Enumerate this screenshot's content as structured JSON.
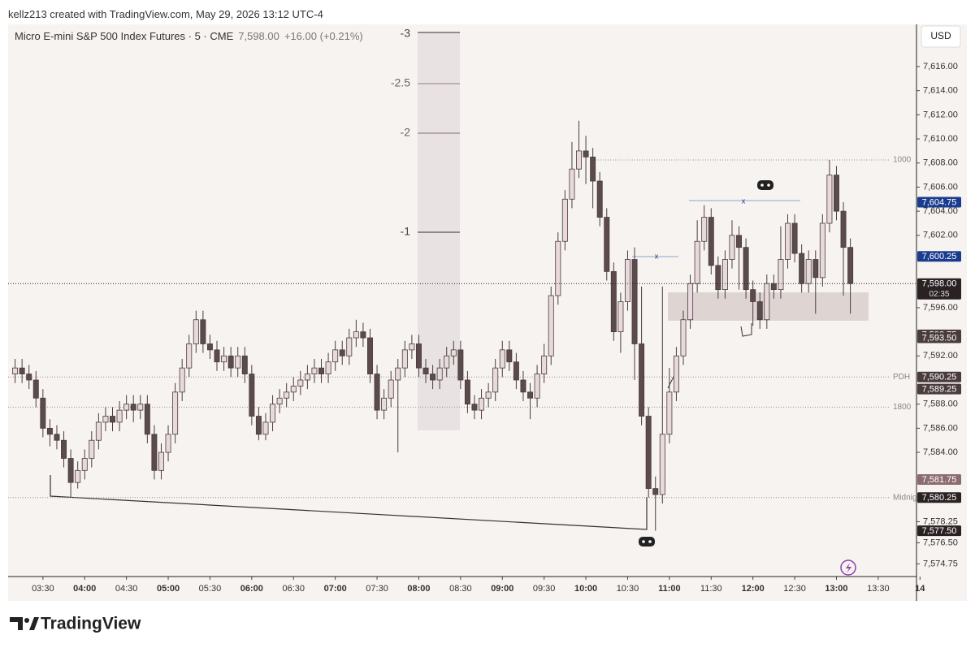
{
  "header": {
    "credit": "kellz213 created with TradingView.com, May 29, 2026 13:12 UTC-4",
    "symbol": "Micro E-mini S&P 500 Index Futures · 5 · CME",
    "price": "7,598.00",
    "change": "+16.00 (+0.21%)",
    "currency": "USD"
  },
  "footer": {
    "brand": "TradingView"
  },
  "fib_labels": [
    "-3",
    "-2.5",
    "-2",
    "-1"
  ],
  "chart_data": {
    "type": "candlestick",
    "open": [
      7590.5,
      7591,
      7590.5,
      7590,
      7588.5,
      7586,
      7585.5,
      7585,
      7583.5,
      7581.5,
      7582.5,
      7583.5,
      7585,
      7586.5,
      7587,
      7586.5,
      7587.5,
      7588,
      7587.5,
      7588,
      7585.5,
      7582.5,
      7584,
      7585.5,
      7589,
      7591,
      7593,
      7595,
      7593,
      7592.5,
      7591.5,
      7592,
      7591,
      7592,
      7590.5,
      7587,
      7585.5,
      7586.5,
      7588,
      7588.5,
      7589,
      7589.5,
      7590,
      7590.5,
      7591,
      7590.5,
      7591.5,
      7592.5,
      7592,
      7593.5,
      7594,
      7593.5,
      7590.5,
      7587.5,
      7588.5,
      7590,
      7591,
      7592.5,
      7593,
      7591,
      7590.5,
      7590,
      7591,
      7592,
      7592.5,
      7590,
      7588,
      7587.5,
      7588.5,
      7589,
      7591,
      7592.5,
      7591.5,
      7590,
      7589,
      7588.5,
      7590.5,
      7592,
      7597,
      7601.5,
      7605,
      7607.5,
      7609,
      7608.5,
      7606.5,
      7603.5,
      7599,
      7594,
      7596.5,
      7600,
      7593,
      7587,
      7581,
      7580.5,
      7585.5,
      7589,
      7592,
      7595,
      7598,
      7601.5,
      7603.5,
      7599.5,
      7597.5,
      7600,
      7602,
      7601,
      7597.5,
      7596.5,
      7595,
      7598,
      7597.5,
      7600,
      7603,
      7600.5,
      7598,
      7600,
      7598.5,
      7603,
      7607,
      7604,
      7601
    ],
    "high": [
      7591.75,
      7591.75,
      7591.25,
      7590.75,
      7589.25,
      7586.75,
      7586.25,
      7585.75,
      7584.25,
      7583.25,
      7584.25,
      7585.75,
      7587.25,
      7587.75,
      7587.75,
      7588.25,
      7588.75,
      7588.75,
      7588.75,
      7588.75,
      7586.25,
      7584.75,
      7586.25,
      7589.75,
      7591.75,
      7593.75,
      7595.75,
      7595.75,
      7593.75,
      7593.25,
      7592.75,
      7592.75,
      7592.75,
      7592.75,
      7591.25,
      7587.75,
      7587.25,
      7588.75,
      7589.25,
      7589.75,
      7590.25,
      7590.75,
      7591.25,
      7591.75,
      7591.75,
      7592.25,
      7593.25,
      7593.25,
      7594.25,
      7595,
      7594.75,
      7594.25,
      7591.25,
      7589.25,
      7590.75,
      7591.75,
      7593.25,
      7593.75,
      7593.75,
      7591.75,
      7591.25,
      7591.75,
      7592.75,
      7593.25,
      7593.25,
      7590.75,
      7588.75,
      7589.25,
      7589.75,
      7591.75,
      7593.25,
      7593.25,
      7592.25,
      7590.75,
      7589.75,
      7591.25,
      7593,
      7597.75,
      7602.25,
      7605.75,
      7609.75,
      7611.5,
      7610.25,
      7609.25,
      7607.25,
      7604.25,
      7599.75,
      7597.25,
      7600.75,
      7601,
      7597.75,
      7587.75,
      7582,
      7597.75,
      7591,
      7592.75,
      7595.75,
      7598.75,
      7603.25,
      7604.5,
      7604.25,
      7600.25,
      7600.75,
      7603.25,
      7602.75,
      7601.75,
      7598.25,
      7597.25,
      7598.75,
      7598.75,
      7602.75,
      7603.75,
      7603.75,
      7601.25,
      7600.75,
      7600.75,
      7603.75,
      7608.25,
      7607.75,
      7604.75,
      7601.75
    ],
    "low": [
      7589.75,
      7589.75,
      7589.25,
      7587.75,
      7585.25,
      7584.5,
      7584.25,
      7582.75,
      7580.25,
      7581,
      7581.75,
      7582.75,
      7584.25,
      7585.75,
      7585.75,
      7585.75,
      7586.75,
      7586.5,
      7586.75,
      7584.75,
      7581.75,
      7581.75,
      7583.25,
      7584.75,
      7588.25,
      7590.25,
      7592.25,
      7592.25,
      7591.75,
      7590.75,
      7590.75,
      7590.25,
      7590.25,
      7589.75,
      7586.25,
      7585,
      7585,
      7585.75,
      7587.25,
      7587.75,
      7588.25,
      7588.75,
      7589.25,
      7589.75,
      7589.75,
      7589.75,
      7590.75,
      7591.25,
      7591.25,
      7592.75,
      7592.75,
      7589.75,
      7586.75,
      7586.75,
      7587.75,
      7584,
      7590.25,
      7591.75,
      7590.25,
      7589.75,
      7589.25,
      7589.25,
      7590.25,
      7591.25,
      7589.25,
      7587.25,
      7586.75,
      7586.75,
      7587.75,
      7588.25,
      7590.25,
      7590.75,
      7589.25,
      7588.25,
      7586.75,
      7587.75,
      7589.75,
      7591.25,
      7596.25,
      7600.75,
      7604.25,
      7606.75,
      7606.25,
      7604.25,
      7602.75,
      7598.25,
      7593.25,
      7592.25,
      7595.75,
      7590,
      7586.25,
      7580.25,
      7577.5,
      7579.75,
      7584.75,
      7588.25,
      7591.25,
      7594.25,
      7597.25,
      7600.75,
      7598.75,
      7596.75,
      7596.75,
      7599.25,
      7597.5,
      7596.75,
      7594.5,
      7594.25,
      7594.25,
      7596.75,
      7596.75,
      7599.25,
      7599.75,
      7597.25,
      7597.25,
      7595.5,
      7597.75,
      7602.25,
      7603.25,
      7597,
      7595.5
    ],
    "close": [
      7591,
      7590.5,
      7590,
      7588.5,
      7586,
      7585.5,
      7585,
      7583.5,
      7581.5,
      7582.5,
      7583.5,
      7585,
      7586.5,
      7587,
      7586.5,
      7587.5,
      7588,
      7587.5,
      7588,
      7585.5,
      7582.5,
      7584,
      7585.5,
      7589,
      7591,
      7593,
      7595,
      7593,
      7592.5,
      7591.5,
      7592,
      7591,
      7592,
      7590.5,
      7587,
      7585.5,
      7586.5,
      7588,
      7588.5,
      7589,
      7589.5,
      7590,
      7590.5,
      7591,
      7590.5,
      7591.5,
      7592.5,
      7592,
      7593.5,
      7594,
      7593.5,
      7590.5,
      7587.5,
      7588.5,
      7590,
      7591,
      7592.5,
      7593,
      7591,
      7590.5,
      7590,
      7591,
      7592,
      7592.5,
      7590,
      7588,
      7587.5,
      7588.5,
      7589,
      7591,
      7592.5,
      7591.5,
      7590,
      7589,
      7588.5,
      7590.5,
      7592,
      7597,
      7601.5,
      7605,
      7607.5,
      7609,
      7608.5,
      7606.5,
      7603.5,
      7599,
      7594,
      7596.5,
      7600,
      7593,
      7587,
      7581,
      7580.5,
      7585.5,
      7589,
      7592,
      7595,
      7598,
      7601.5,
      7603.5,
      7599.5,
      7597.5,
      7600,
      7602,
      7601,
      7597.5,
      7596.5,
      7595,
      7598,
      7597.5,
      7600,
      7603,
      7600.5,
      7598,
      7600,
      7598.5,
      7603,
      7607,
      7604,
      7601,
      7598
    ],
    "up_color": "#e8dadc",
    "down_color": "#5b4b4d",
    "xlim": [
      -1,
      129.5
    ],
    "xticks": [
      {
        "value": 4,
        "label": "03:30"
      },
      {
        "value": 10,
        "label": "04:00"
      },
      {
        "value": 16,
        "label": "04:30"
      },
      {
        "value": 22,
        "label": "05:00"
      },
      {
        "value": 28,
        "label": "05:30"
      },
      {
        "value": 34,
        "label": "06:00"
      },
      {
        "value": 40,
        "label": "06:30"
      },
      {
        "value": 46,
        "label": "07:00"
      },
      {
        "value": 52,
        "label": "07:30"
      },
      {
        "value": 58,
        "label": "08:00"
      },
      {
        "value": 64,
        "label": "08:30"
      },
      {
        "value": 70,
        "label": "09:00"
      },
      {
        "value": 76,
        "label": "09:30"
      },
      {
        "value": 82,
        "label": "10:00"
      },
      {
        "value": 88,
        "label": "10:30"
      },
      {
        "value": 94,
        "label": "11:00"
      },
      {
        "value": 100,
        "label": "11:30"
      },
      {
        "value": 106,
        "label": "12:00"
      },
      {
        "value": 112,
        "label": "12:30"
      },
      {
        "value": 118,
        "label": "13:00"
      },
      {
        "value": 124,
        "label": "13:30"
      },
      {
        "value": 130,
        "label": "14"
      }
    ],
    "ylim": [
      7573.7,
      7619.5
    ],
    "yticks": [
      {
        "value": 7616,
        "label": "7,616.00"
      },
      {
        "value": 7614,
        "label": "7,614.00"
      },
      {
        "value": 7612,
        "label": "7,612.00"
      },
      {
        "value": 7610,
        "label": "7,610.00"
      },
      {
        "value": 7608,
        "label": "7,608.00"
      },
      {
        "value": 7606,
        "label": "7,606.00"
      },
      {
        "value": 7604,
        "label": "7,604.00"
      },
      {
        "value": 7602,
        "label": "7,602.00"
      },
      {
        "value": 7596,
        "label": "7,596.00"
      },
      {
        "value": 7592,
        "label": "7,592.00"
      },
      {
        "value": 7588,
        "label": "7,588.00"
      },
      {
        "value": 7586,
        "label": "7,586.00"
      },
      {
        "value": 7584,
        "label": "7,584.00"
      },
      {
        "value": 7578.25,
        "label": "7,578.25"
      },
      {
        "value": 7576.5,
        "label": "7,576.50"
      },
      {
        "value": 7574.75,
        "label": "7,574.75"
      }
    ],
    "levels": [
      {
        "label": "1000",
        "value": 7608.25
      },
      {
        "label": "PDH",
        "value": 7590.25
      },
      {
        "label": "1800",
        "value": 7587.75
      },
      {
        "label": "Midnight",
        "value": 7580.25
      }
    ],
    "price_tags": [
      {
        "value": 7604.75,
        "label": "7,604.75",
        "color": "#1b3c8e"
      },
      {
        "value": 7600.25,
        "label": "7,600.25",
        "color": "#1b3c8e"
      },
      {
        "value": 7598,
        "label": "7,598.00",
        "color": "#2a2123",
        "countdown": "02:35"
      },
      {
        "value": 7593.75,
        "label": "7,593.75",
        "color": "#4a3c3e"
      },
      {
        "value": 7593.5,
        "label": "7,593.50",
        "color": "#4a3c3e"
      },
      {
        "value": 7590.25,
        "label": "7,590.25",
        "color": "#4a3c3e"
      },
      {
        "value": 7589.25,
        "label": "7,589.25",
        "color": "#4a3c3e"
      },
      {
        "value": 7581.75,
        "label": "7,581.75",
        "color": "#8c6c70"
      },
      {
        "value": 7580.25,
        "label": "7,580.25",
        "color": "#2a2123"
      },
      {
        "value": 7577.5,
        "label": "7,577.50",
        "color": "#2a2123"
      }
    ]
  }
}
